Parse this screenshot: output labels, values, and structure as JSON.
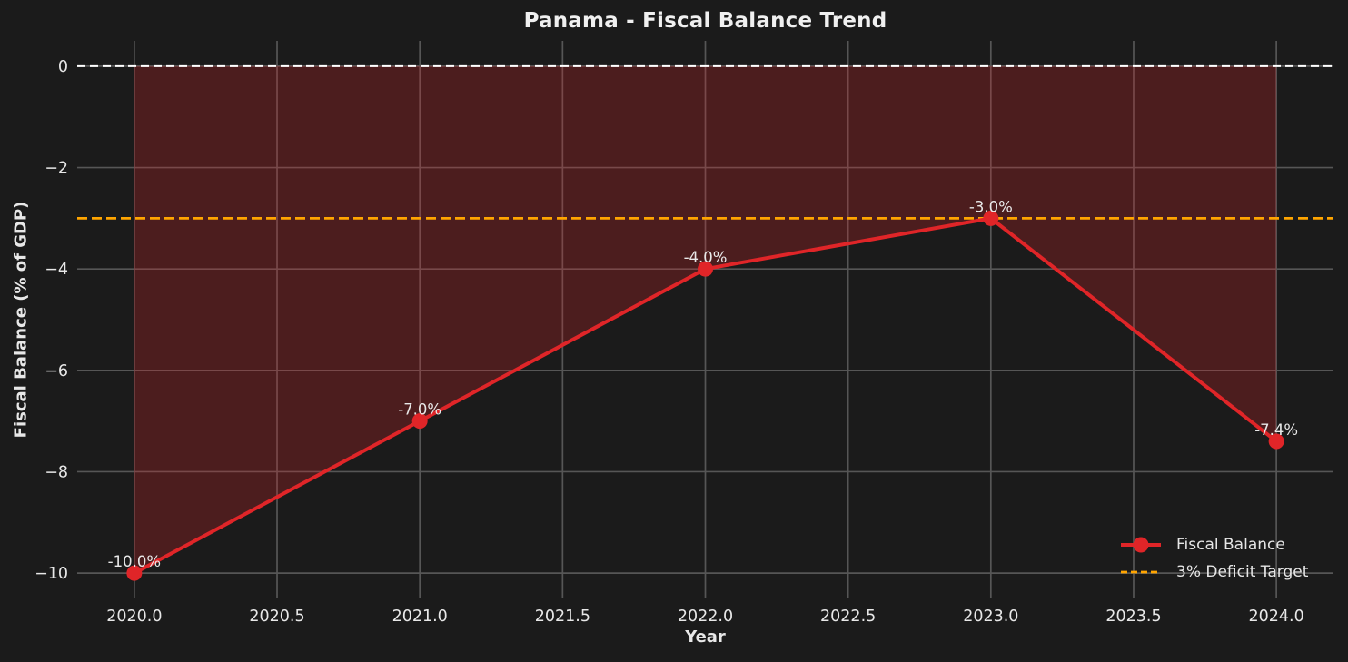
{
  "title": "Panama - Fiscal Balance Trend",
  "chart_data": {
    "type": "line",
    "title": "Panama - Fiscal Balance Trend",
    "xlabel": "Year",
    "ylabel": "Fiscal Balance (% of GDP)",
    "x": [
      2020,
      2021,
      2022,
      2023,
      2024
    ],
    "series": [
      {
        "name": "Fiscal Balance",
        "values": [
          -10.0,
          -7.0,
          -4.0,
          -3.0,
          -7.4
        ],
        "point_labels": [
          "-10.0%",
          "-7.0%",
          "-4.0%",
          "-3.0%",
          "-7.4%"
        ],
        "color": "#e02528",
        "marker": "circle",
        "fill_to_zero": true,
        "fill_opacity": 0.25
      }
    ],
    "reference_lines": [
      {
        "name": "zero-balance-line",
        "value": 0,
        "color": "#ffffff",
        "style": "dashed"
      },
      {
        "name": "3% Deficit Target",
        "value": -3,
        "color": "#ffa500",
        "style": "dashed"
      }
    ],
    "xlim": [
      2019.8,
      2024.2
    ],
    "ylim": [
      -10.5,
      0.5
    ],
    "grid": true,
    "x_ticks": [
      {
        "value": 2020.0,
        "label": "2020.0"
      },
      {
        "value": 2020.5,
        "label": "2020.5"
      },
      {
        "value": 2021.0,
        "label": "2021.0"
      },
      {
        "value": 2021.5,
        "label": "2021.5"
      },
      {
        "value": 2022.0,
        "label": "2022.0"
      },
      {
        "value": 2022.5,
        "label": "2022.5"
      },
      {
        "value": 2023.0,
        "label": "2023.0"
      },
      {
        "value": 2023.5,
        "label": "2023.5"
      },
      {
        "value": 2024.0,
        "label": "2024.0"
      }
    ],
    "y_ticks": [
      {
        "value": 0,
        "label": "0"
      },
      {
        "value": -2,
        "label": "−2"
      },
      {
        "value": -4,
        "label": "−4"
      },
      {
        "value": -6,
        "label": "−6"
      },
      {
        "value": -8,
        "label": "−8"
      },
      {
        "value": -10,
        "label": "−10"
      }
    ],
    "legend": {
      "position": "lower right",
      "entries": [
        {
          "label": "Fiscal Balance",
          "color": "#e02528",
          "style": "line-with-marker"
        },
        {
          "label": "3% Deficit Target",
          "color": "#ffa500",
          "style": "dashed"
        }
      ]
    },
    "colors": {
      "background": "#1b1b1b",
      "grid": "#565656",
      "text": "#e8e8e8",
      "title": "#f0f0f0"
    }
  }
}
